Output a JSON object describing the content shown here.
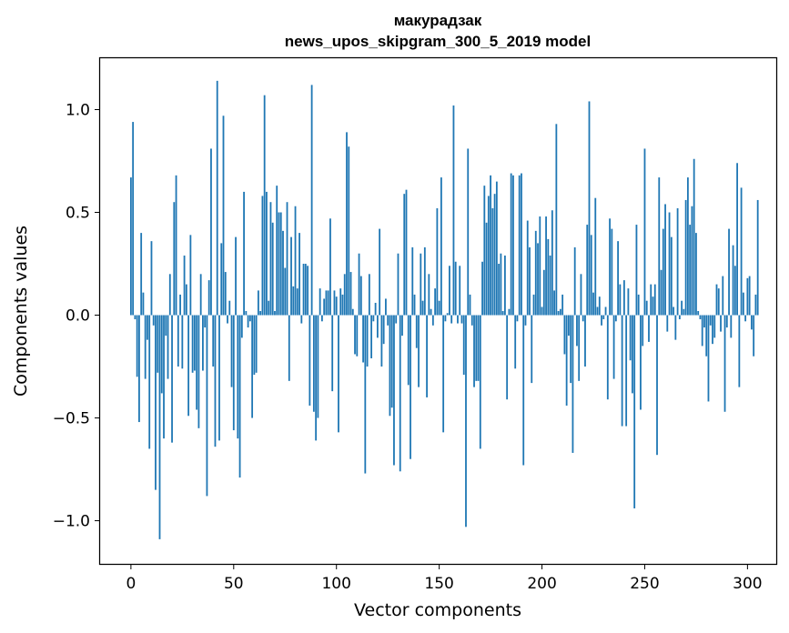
{
  "chart_data": {
    "type": "bar",
    "title": "макурадзак",
    "subtitle": "news_upos_skipgram_300_5_2019 model",
    "xlabel": "Vector components",
    "ylabel": "Components values",
    "xlim": [
      -15,
      314
    ],
    "ylim": [
      -1.21,
      1.25
    ],
    "xticks": [
      0,
      50,
      100,
      150,
      200,
      250,
      300
    ],
    "yticks": [
      -1.0,
      -0.5,
      0.0,
      0.5,
      1.0
    ],
    "ytick_labels": [
      "−1.0",
      "−0.5",
      "0.0",
      "0.5",
      "1.0"
    ],
    "grid": false,
    "bar_color": "#1f77b4",
    "values": [
      0.67,
      0.94,
      -0.02,
      -0.3,
      -0.52,
      0.4,
      0.11,
      -0.31,
      -0.12,
      -0.65,
      0.36,
      -0.05,
      -0.85,
      -0.28,
      -1.09,
      -0.38,
      -0.6,
      -0.1,
      -0.31,
      0.2,
      -0.62,
      0.55,
      0.68,
      -0.25,
      0.1,
      -0.26,
      0.29,
      0.15,
      -0.49,
      0.39,
      -0.28,
      -0.27,
      -0.46,
      -0.55,
      0.2,
      -0.27,
      -0.06,
      -0.88,
      0.17,
      0.81,
      -0.25,
      -0.64,
      1.14,
      -0.61,
      0.35,
      0.97,
      0.21,
      -0.04,
      0.07,
      -0.35,
      -0.56,
      0.38,
      -0.6,
      -0.79,
      -0.11,
      0.6,
      0.02,
      -0.06,
      -0.03,
      -0.5,
      -0.29,
      -0.28,
      0.12,
      0.02,
      0.58,
      1.07,
      0.6,
      0.07,
      0.55,
      0.45,
      0.02,
      0.63,
      0.5,
      0.5,
      0.41,
      0.23,
      0.55,
      -0.32,
      0.38,
      0.14,
      0.53,
      0.13,
      0.4,
      -0.04,
      0.25,
      0.25,
      0.24,
      -0.44,
      1.12,
      -0.47,
      -0.61,
      -0.5,
      0.13,
      -0.03,
      0.08,
      0.12,
      0.12,
      0.47,
      -0.37,
      0.12,
      0.09,
      -0.57,
      0.13,
      0.1,
      0.2,
      0.89,
      0.82,
      0.21,
      0.03,
      -0.19,
      -0.2,
      0.3,
      0.19,
      -0.23,
      -0.77,
      -0.25,
      0.2,
      -0.21,
      -0.03,
      0.06,
      -0.11,
      0.42,
      -0.25,
      -0.14,
      0.08,
      -0.05,
      -0.49,
      -0.45,
      -0.73,
      -0.04,
      0.3,
      -0.76,
      -0.1,
      0.59,
      0.61,
      -0.34,
      -0.7,
      0.33,
      0.1,
      -0.16,
      -0.35,
      0.3,
      0.07,
      0.33,
      -0.4,
      0.2,
      0.03,
      -0.05,
      0.13,
      0.52,
      0.07,
      0.67,
      -0.57,
      -0.03,
      0.01,
      0.24,
      -0.04,
      1.02,
      0.26,
      -0.04,
      0.24,
      -0.04,
      -0.29,
      -1.03,
      0.81,
      0.1,
      -0.05,
      -0.35,
      -0.32,
      -0.32,
      -0.65,
      0.26,
      0.63,
      0.45,
      0.58,
      0.68,
      0.52,
      0.59,
      0.65,
      0.25,
      0.3,
      0.02,
      0.29,
      -0.41,
      0.03,
      0.69,
      0.68,
      -0.26,
      -0.03,
      0.68,
      0.69,
      -0.73,
      -0.05,
      0.46,
      0.33,
      -0.33,
      0.1,
      0.41,
      0.35,
      0.48,
      0.04,
      0.22,
      0.48,
      0.37,
      0.29,
      0.51,
      0.12,
      0.93,
      0.02,
      0.03,
      0.1,
      -0.19,
      -0.44,
      -0.1,
      -0.33,
      -0.67,
      0.33,
      -0.15,
      -0.32,
      0.2,
      -0.03,
      -0.25,
      0.44,
      1.04,
      0.39,
      0.11,
      0.57,
      0.04,
      0.09,
      -0.05,
      -0.02,
      0.04,
      -0.41,
      0.47,
      0.42,
      -0.31,
      -0.03,
      0.36,
      0.15,
      -0.54,
      0.17,
      -0.54,
      0.13,
      -0.22,
      -0.38,
      -0.94,
      0.44,
      0.1,
      -0.46,
      -0.15,
      0.81,
      0.07,
      -0.13,
      0.15,
      0.09,
      0.15,
      -0.68,
      0.67,
      0.22,
      0.42,
      0.54,
      -0.08,
      0.5,
      0.38,
      0.04,
      -0.12,
      0.52,
      -0.02,
      0.07,
      0.03,
      0.56,
      0.67,
      0.44,
      0.53,
      0.76,
      0.4,
      0.02,
      -0.02,
      -0.15,
      -0.06,
      -0.2,
      -0.42,
      -0.05,
      -0.14,
      -0.11,
      0.15,
      0.13,
      -0.08,
      0.19,
      -0.47,
      -0.06,
      0.42,
      -0.11,
      0.34,
      0.24,
      0.74,
      -0.35,
      0.62,
      0.11,
      -0.03,
      0.18,
      0.19,
      -0.07,
      -0.2,
      0.1,
      0.56
    ]
  }
}
